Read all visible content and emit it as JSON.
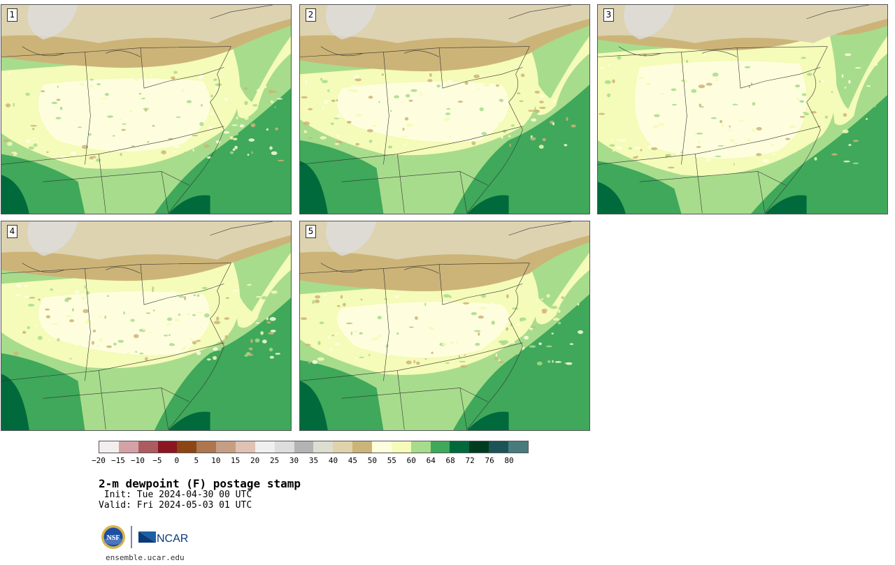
{
  "panels": [
    {
      "label": "1"
    },
    {
      "label": "2"
    },
    {
      "label": "3"
    },
    {
      "label": "4"
    },
    {
      "label": "5"
    }
  ],
  "colorbar": {
    "colors": [
      "#f3eeee",
      "#d4a2a6",
      "#ad5b61",
      "#8c1622",
      "#8c4613",
      "#ad764f",
      "#c59e84",
      "#dfc2b3",
      "#efefef",
      "#dddddd",
      "#b3b3b3",
      "#ddddd0",
      "#e0d2aa",
      "#ccb478",
      "#fefedf",
      "#f5fbb8",
      "#a7dc8c",
      "#3fa85a",
      "#006a3c",
      "#003c20",
      "#1b5456",
      "#497b7d"
    ],
    "tick_labels": [
      "−20",
      "−15",
      "−10",
      "−5",
      "0",
      "5",
      "10",
      "15",
      "20",
      "25",
      "30",
      "35",
      "40",
      "45",
      "50",
      "55",
      "60",
      "64",
      "68",
      "72",
      "76",
      "80"
    ]
  },
  "title": "2-m dewpoint (F) postage stamp",
  "init": " Init: Tue 2024-04-30 00 UTC",
  "valid": "Valid: Fri 2024-05-03 01 UTC",
  "logos": {
    "nsf": "NSF",
    "ncar": "NCAR"
  },
  "site": "ensemble.ucar.edu"
}
